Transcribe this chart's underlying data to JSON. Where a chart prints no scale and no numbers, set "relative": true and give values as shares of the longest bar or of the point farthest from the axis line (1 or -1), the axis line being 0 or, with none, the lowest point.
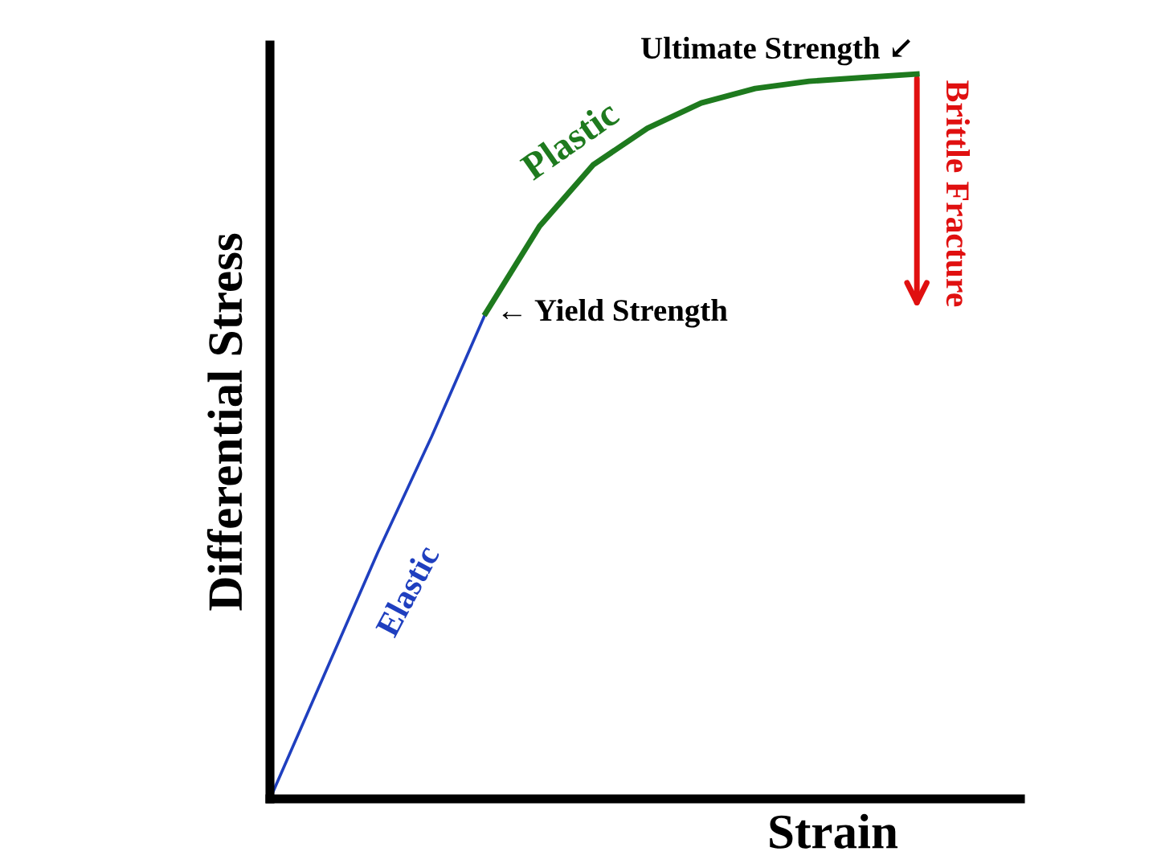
{
  "chart_data": {
    "type": "line",
    "relative": true,
    "xlabel": "Strain",
    "ylabel": "Differential Stress",
    "marker": "none",
    "line_style": "solid",
    "categories": [
      null,
      null,
      null,
      null,
      null,
      null,
      null,
      null,
      null,
      null,
      null,
      null,
      null
    ],
    "series": [
      {
        "name": "Elastic",
        "color": "#1f3fbf",
        "values": [
          0,
          0.17,
          0.34,
          0.5,
          0.67,
          null,
          null,
          null,
          null,
          null,
          null,
          null,
          null
        ]
      },
      {
        "name": "Plastic",
        "color": "#1e7a1e",
        "values": [
          null,
          null,
          null,
          null,
          0.67,
          0.79,
          0.875,
          0.925,
          0.96,
          0.98,
          0.99,
          0.995,
          1
        ]
      }
    ],
    "annotations": [
      "Ultimate Strength ↙",
      "← Yield Strength",
      "Brittle Fracture"
    ]
  }
}
